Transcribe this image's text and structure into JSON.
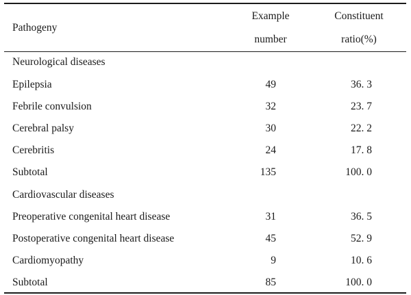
{
  "table": {
    "headers": {
      "pathogeny": "Pathogeny",
      "example_line1": "Example",
      "example_line2": "number",
      "ratio_line1": "Constituent",
      "ratio_line2": "ratio(%)"
    },
    "rows": [
      {
        "name": "Neurological diseases",
        "number": "",
        "ratio": ""
      },
      {
        "name": "Epilepsia",
        "number": "49",
        "ratio": "36. 3"
      },
      {
        "name": "Febrile convulsion",
        "number": "32",
        "ratio": "23. 7"
      },
      {
        "name": "Cerebral palsy",
        "number": "30",
        "ratio": "22. 2"
      },
      {
        "name": "Cerebritis",
        "number": "24",
        "ratio": "17. 8"
      },
      {
        "name": "Subtotal",
        "number": "135",
        "ratio": "100. 0"
      },
      {
        "name": "Cardiovascular diseases",
        "number": "",
        "ratio": ""
      },
      {
        "name": "Preoperative congenital heart disease",
        "number": "31",
        "ratio": "36. 5"
      },
      {
        "name": "Postoperative congenital heart disease",
        "number": "45",
        "ratio": "52. 9"
      },
      {
        "name": "Cardiomyopathy",
        "number": "9",
        "ratio": "10. 6"
      },
      {
        "name": "Subtotal",
        "number": "85",
        "ratio": "100. 0"
      }
    ]
  }
}
